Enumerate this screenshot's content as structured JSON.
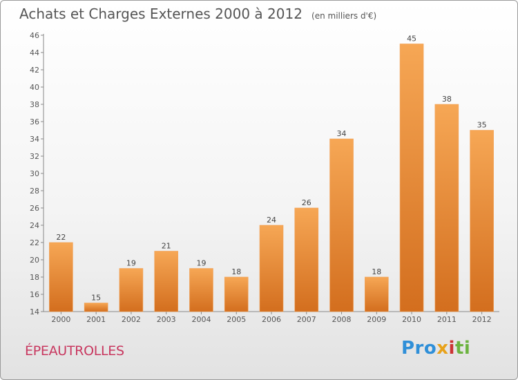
{
  "header": {
    "title": "Achats et Charges Externes 2000 à 2012",
    "unit": "(en milliers d'€)"
  },
  "footer": {
    "town": "ÉPEAUTROLLES",
    "logo_parts": [
      "Pro",
      "x",
      "i",
      "ti"
    ]
  },
  "colors": {
    "bar_top": "#f6a755",
    "bar_bottom": "#d36e1e",
    "text": "#555555",
    "town": "#c8375f"
  },
  "chart_data": {
    "type": "bar",
    "categories": [
      "2000",
      "2001",
      "2002",
      "2003",
      "2004",
      "2005",
      "2006",
      "2007",
      "2008",
      "2009",
      "2010",
      "2011",
      "2012"
    ],
    "values": [
      22,
      15,
      19,
      21,
      19,
      18,
      24,
      26,
      34,
      18,
      45,
      38,
      35
    ],
    "data_labels": [
      "22",
      "15",
      "19",
      "21",
      "19",
      "18",
      "24",
      "26",
      "34",
      "18",
      "45",
      "38",
      "35"
    ],
    "title": "Achats et Charges Externes 2000 à 2012",
    "ylim": [
      14,
      46
    ],
    "yticks": [
      "14",
      "16",
      "18",
      "20",
      "22",
      "24",
      "26",
      "28",
      "30",
      "32",
      "34",
      "36",
      "38",
      "40",
      "42",
      "44",
      "46"
    ],
    "grid": false
  }
}
